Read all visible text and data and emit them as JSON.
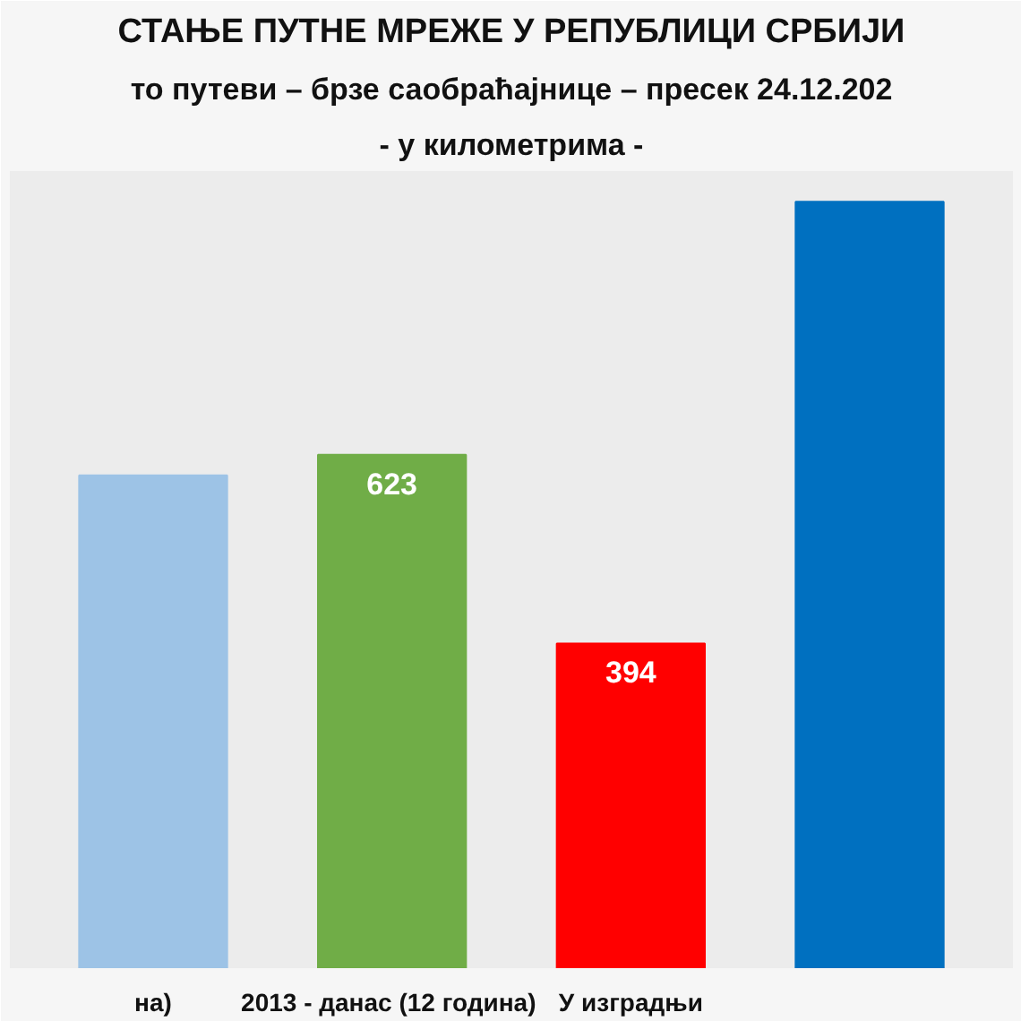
{
  "chart_data": {
    "type": "bar",
    "title": "СТАЊЕ ПУТНЕ МРЕЖЕ У РЕПУБЛИЦИ СРБИЈИ",
    "subtitle": "то путеви – брзе саобраћајнице – пресек 24.12.202",
    "ylabel": "- у километрима -",
    "categories": [
      "на)",
      "2013 -  данас (12 година)",
      "У изградњи",
      null
    ],
    "values": [
      598,
      623,
      394,
      930
    ],
    "colors": [
      "#9dc3e6",
      "#70ad47",
      "#ff0000",
      "#0070c0"
    ],
    "value_labels": [
      null,
      "623",
      "394",
      null
    ],
    "grid": false
  }
}
